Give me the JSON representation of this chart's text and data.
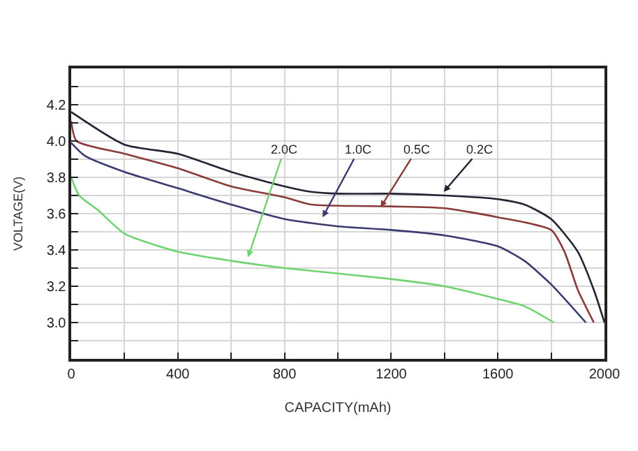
{
  "chart_data": {
    "type": "line",
    "xlabel": "CAPACITY(mAh)",
    "ylabel": "VOLTAGE(V)",
    "xlim": [
      0,
      2000
    ],
    "ylim": [
      2.8,
      4.4
    ],
    "xticks": [
      0,
      {
        "value": 200,
        "label": null
      },
      400,
      {
        "value": 600,
        "label": null
      },
      800,
      {
        "value": 1000,
        "label": null
      },
      1200,
      {
        "value": 1400,
        "label": null
      },
      1600,
      {
        "value": 1800,
        "label": null
      },
      2000
    ],
    "yticks": [
      {
        "value": 2.9,
        "label": null
      },
      {
        "value": 3.0,
        "label": "3.0"
      },
      {
        "value": 3.1,
        "label": null
      },
      3.2,
      {
        "value": 3.3,
        "label": null
      },
      3.4,
      {
        "value": 3.5,
        "label": null
      },
      3.6,
      {
        "value": 3.7,
        "label": null
      },
      3.8,
      {
        "value": 3.9,
        "label": null
      },
      {
        "value": 4.0,
        "label": "4.0"
      },
      {
        "value": 4.1,
        "label": null
      },
      4.2,
      {
        "value": 4.3,
        "label": null
      }
    ],
    "grid": true,
    "marker": "none",
    "line_style": "solid",
    "series": [
      {
        "color": "#222233",
        "x": [
          0,
          200,
          400,
          600,
          800,
          900,
          1000,
          1200,
          1400,
          1600,
          1700,
          1800,
          1900,
          1960,
          2000
        ],
        "values": [
          4.16,
          3.98,
          3.93,
          3.83,
          3.75,
          3.72,
          3.71,
          3.71,
          3.7,
          3.68,
          3.65,
          3.57,
          3.39,
          3.18,
          3.0
        ]
      },
      {
        "color": "#8b3a3a",
        "x": [
          0,
          20,
          200,
          400,
          600,
          800,
          900,
          1200,
          1400,
          1600,
          1800,
          1850,
          1900,
          1960
        ],
        "values": [
          4.11,
          4.0,
          3.93,
          3.85,
          3.75,
          3.69,
          3.65,
          3.64,
          3.63,
          3.58,
          3.51,
          3.39,
          3.18,
          3.0
        ]
      },
      {
        "color": "#3a3a70",
        "x": [
          0,
          50,
          200,
          400,
          600,
          800,
          1000,
          1200,
          1400,
          1600,
          1700,
          1800,
          1930
        ],
        "values": [
          3.99,
          3.92,
          3.83,
          3.74,
          3.65,
          3.57,
          3.53,
          3.51,
          3.48,
          3.42,
          3.34,
          3.21,
          3.0
        ]
      },
      {
        "color": "#6fd36f",
        "x": [
          0,
          30,
          100,
          200,
          400,
          600,
          800,
          1200,
          1400,
          1600,
          1700,
          1810
        ],
        "values": [
          3.8,
          3.7,
          3.62,
          3.49,
          3.39,
          3.34,
          3.3,
          3.24,
          3.2,
          3.13,
          3.09,
          3.0
        ]
      }
    ],
    "annotations": [
      {
        "text": "2.0C",
        "x": 663,
        "y": 3.36
      },
      {
        "text": "1.0C",
        "x": 943,
        "y": 3.58
      },
      {
        "text": "0.5C",
        "x": 1160,
        "y": 3.635
      },
      {
        "text": "0.2C",
        "x": 1397,
        "y": 3.72
      }
    ]
  }
}
